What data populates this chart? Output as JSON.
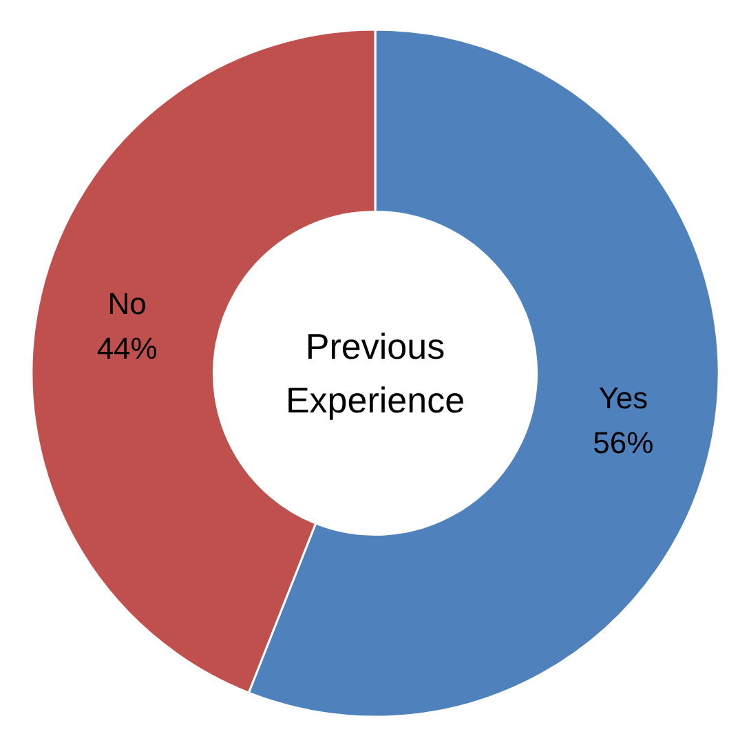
{
  "chart_data": {
    "type": "donut",
    "title": "Previous Experience",
    "categories": [
      "Yes",
      "No"
    ],
    "values": [
      56,
      44
    ],
    "colors": [
      "#4f81bd",
      "#c0504d"
    ],
    "value_labels": [
      "56%",
      "44%"
    ]
  }
}
